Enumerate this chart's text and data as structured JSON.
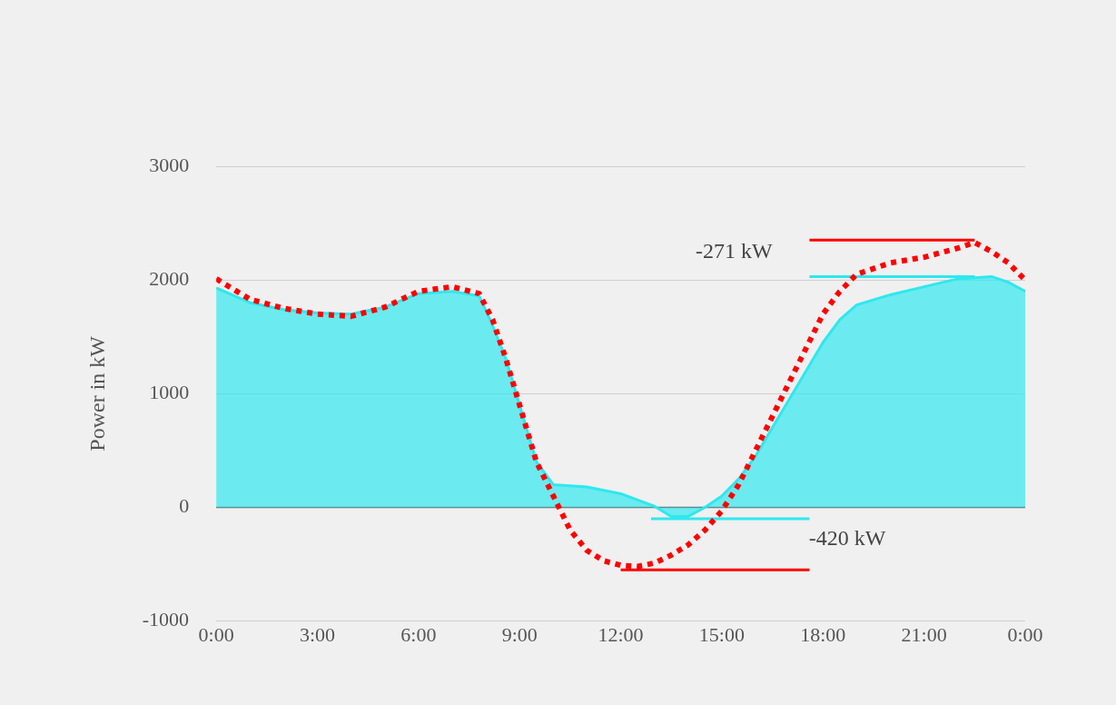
{
  "chart_data": {
    "type": "line",
    "ylabel": "Power in kW",
    "xlim": [
      0,
      24
    ],
    "xticks": [
      {
        "value": 0,
        "label": "0:00"
      },
      {
        "value": 3,
        "label": "3:00"
      },
      {
        "value": 6,
        "label": "6:00"
      },
      {
        "value": 9,
        "label": "9:00"
      },
      {
        "value": 12,
        "label": "12:00"
      },
      {
        "value": 15,
        "label": "15:00"
      },
      {
        "value": 18,
        "label": "18:00"
      },
      {
        "value": 21,
        "label": "21:00"
      },
      {
        "value": 24,
        "label": "0:00"
      }
    ],
    "ylim": [
      -1000,
      3000
    ],
    "yticks": [
      -1000,
      0,
      1000,
      2000,
      3000
    ],
    "grid": "y",
    "legend": false,
    "marker": "none",
    "series": [
      {
        "type": "area",
        "color": "#2ee8ee",
        "line_style": "solid",
        "x": [
          0,
          1,
          2,
          3,
          4,
          5,
          6,
          7,
          7.8,
          8.2,
          8.6,
          9,
          9.5,
          10,
          11,
          12,
          13,
          13.5,
          14,
          14.5,
          15,
          15.5,
          16,
          16.5,
          17,
          17.5,
          18,
          18.5,
          19,
          20,
          21,
          22,
          23,
          23.5,
          24
        ],
        "values": [
          1930,
          1800,
          1740,
          1710,
          1700,
          1760,
          1880,
          1900,
          1860,
          1600,
          1300,
          900,
          400,
          200,
          180,
          120,
          10,
          -80,
          -80,
          0,
          100,
          250,
          450,
          700,
          950,
          1200,
          1450,
          1650,
          1780,
          1870,
          1940,
          2010,
          2030,
          1980,
          1900
        ]
      },
      {
        "color": "#ff0000",
        "line_style": "dotted",
        "x": [
          0,
          1,
          2,
          3,
          4,
          5,
          6,
          7,
          7.8,
          8.2,
          8.6,
          9,
          9.5,
          10,
          10.5,
          11,
          11.5,
          12,
          12.5,
          13,
          13.5,
          14,
          14.5,
          15,
          15.5,
          16,
          16.5,
          17,
          17.5,
          18,
          18.5,
          19,
          20,
          21,
          22,
          22.5,
          23,
          23.5,
          24
        ],
        "values": [
          2010,
          1830,
          1750,
          1700,
          1680,
          1760,
          1900,
          1940,
          1880,
          1650,
          1300,
          900,
          400,
          100,
          -200,
          -380,
          -470,
          -510,
          -520,
          -490,
          -420,
          -330,
          -200,
          -30,
          200,
          500,
          800,
          1100,
          1400,
          1700,
          1900,
          2050,
          2150,
          2200,
          2280,
          2330,
          2250,
          2150,
          2000
        ]
      },
      {
        "type": "line",
        "color": "#ff0000",
        "line_style": "solid",
        "x": [
          17.6,
          22.5
        ],
        "values": [
          2350,
          2350
        ]
      },
      {
        "type": "line",
        "color": "#2ee8ee",
        "line_style": "solid",
        "x": [
          17.6,
          22.5
        ],
        "values": [
          2030,
          2030
        ]
      },
      {
        "type": "line",
        "color": "#2ee8ee",
        "line_style": "solid",
        "x": [
          12.9,
          17.6
        ],
        "values": [
          -100,
          -100
        ]
      },
      {
        "type": "line",
        "color": "#ff0000",
        "line_style": "solid",
        "x": [
          12,
          17.6
        ],
        "values": [
          -550,
          -550
        ]
      }
    ],
    "annotations": [
      "-271 kW",
      "-420 kW"
    ]
  }
}
